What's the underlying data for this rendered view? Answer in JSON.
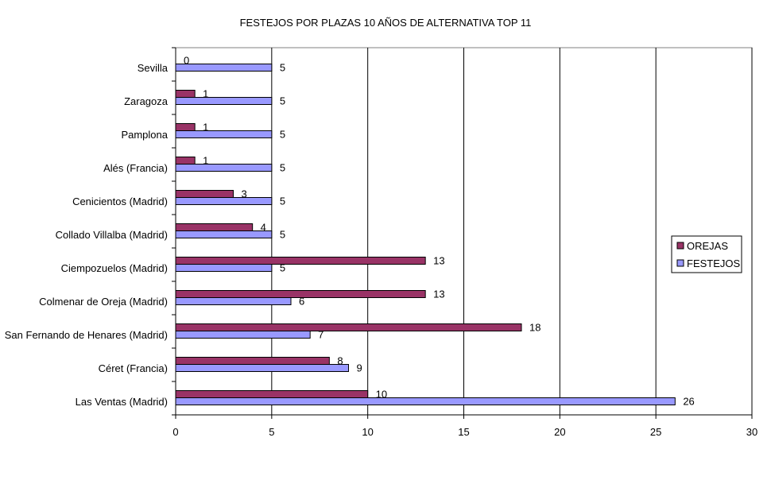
{
  "chart_data": {
    "type": "bar",
    "orientation": "horizontal",
    "title": "FESTEJOS POR PLAZAS 10 AÑOS DE ALTERNATIVA TOP 11",
    "categories": [
      "Sevilla",
      "Zaragoza",
      "Pamplona",
      "Alés (Francia)",
      "Cenicientos (Madrid)",
      "Collado Villalba (Madrid)",
      "Ciempozuelos (Madrid)",
      "Colmenar de Oreja (Madrid)",
      "San Fernando de Henares (Madrid)",
      "Céret (Francia)",
      "Las Ventas (Madrid)"
    ],
    "series": [
      {
        "name": "OREJAS",
        "values": [
          0,
          1,
          1,
          1,
          3,
          4,
          13,
          13,
          18,
          8,
          10
        ],
        "color": "#993366"
      },
      {
        "name": "FESTEJOS",
        "values": [
          5,
          5,
          5,
          5,
          5,
          5,
          5,
          6,
          7,
          9,
          26
        ],
        "color": "#9999FF"
      }
    ],
    "xlim": [
      0,
      30
    ],
    "xticks": [
      "0",
      "5",
      "10",
      "15",
      "20",
      "25",
      "30"
    ],
    "grid": "vertical major gridlines",
    "legend_position": "right",
    "xlabel": "",
    "ylabel": ""
  }
}
